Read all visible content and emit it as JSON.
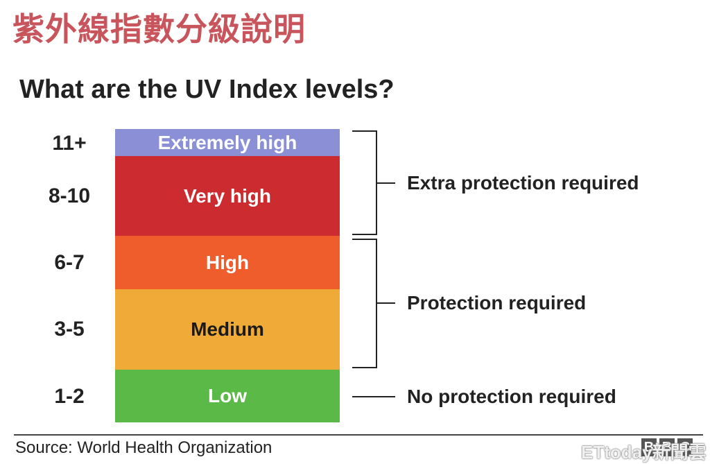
{
  "header": {
    "cjk_title": "紫外線指數分級說明",
    "title": "What are the UV Index levels?"
  },
  "levels": [
    {
      "range": "11+",
      "label": "Extremely high",
      "color": "#8b8fd6",
      "text_color": "#ffffff"
    },
    {
      "range": "8-10",
      "label": "Very high",
      "color": "#cc2b2f",
      "text_color": "#ffffff"
    },
    {
      "range": "6-7",
      "label": "High",
      "color": "#ee5d2b",
      "text_color": "#ffffff"
    },
    {
      "range": "3-5",
      "label": "Medium",
      "color": "#efaa38",
      "text_color": "#1a1a1a"
    },
    {
      "range": "1-2",
      "label": "Low",
      "color": "#5ab947",
      "text_color": "#ffffff"
    }
  ],
  "protection": {
    "extra": "Extra protection required",
    "required": "Protection required",
    "none": "No protection required"
  },
  "footer": {
    "source": "Source: World Health Organization",
    "bbc_letters": [
      "B",
      "B",
      "C"
    ],
    "watermark": "ETtoday新聞雲"
  }
}
